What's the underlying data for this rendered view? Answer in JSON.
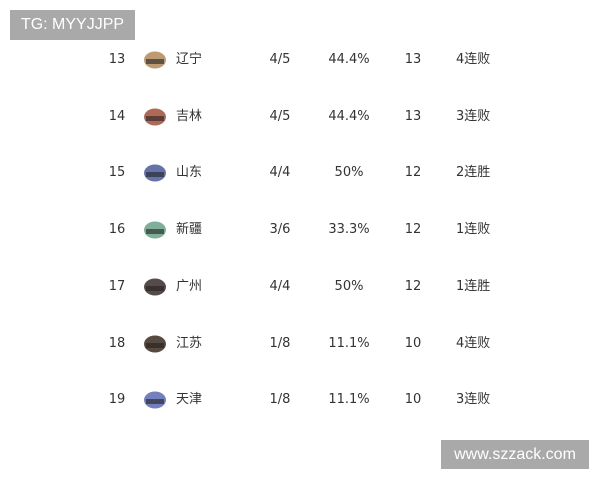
{
  "watermarks": {
    "top_left": "TG: MYYJJPP",
    "bottom_right": "www.szzack.com"
  },
  "rows": [
    {
      "rank": "13",
      "team": "辽宁",
      "record": "4/5",
      "pct": "44.4%",
      "points": "13",
      "streak": "4连败",
      "logo_color": "#b08a5a"
    },
    {
      "rank": "14",
      "team": "吉林",
      "record": "4/5",
      "pct": "44.4%",
      "points": "13",
      "streak": "3连败",
      "logo_color": "#a0503a"
    },
    {
      "rank": "15",
      "team": "山东",
      "record": "4/4",
      "pct": "50%",
      "points": "12",
      "streak": "2连胜",
      "logo_color": "#4a5a9a"
    },
    {
      "rank": "16",
      "team": "新疆",
      "record": "3/6",
      "pct": "33.3%",
      "points": "12",
      "streak": "1连败",
      "logo_color": "#6aa08a"
    },
    {
      "rank": "17",
      "team": "广州",
      "record": "4/4",
      "pct": "50%",
      "points": "12",
      "streak": "1连胜",
      "logo_color": "#3a2a2a"
    },
    {
      "rank": "18",
      "team": "江苏",
      "record": "1/8",
      "pct": "11.1%",
      "points": "10",
      "streak": "4连败",
      "logo_color": "#3a2a20"
    },
    {
      "rank": "19",
      "team": "天津",
      "record": "1/8",
      "pct": "11.1%",
      "points": "10",
      "streak": "3连败",
      "logo_color": "#5a6ab0"
    }
  ]
}
